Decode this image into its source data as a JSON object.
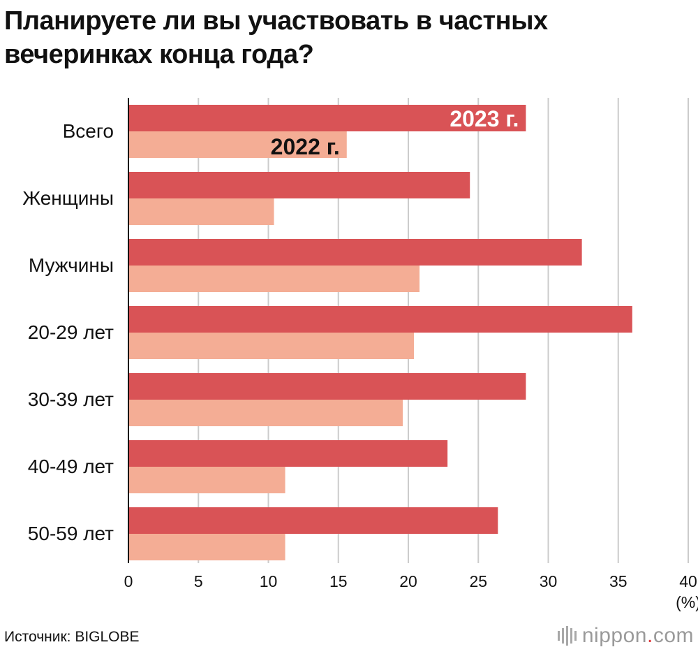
{
  "title": "Планируете ли вы участвовать в частных вечеринках конца года?",
  "source": "Источник: BIGLOBE",
  "logo": {
    "name": "nippon",
    "dot": ".",
    "tld": "com"
  },
  "colors": {
    "y2023": "#d95356",
    "y2022": "#f4ad95",
    "grid": "#cccccc",
    "axis": "#111111"
  },
  "chart_data": {
    "type": "bar",
    "orientation": "horizontal",
    "categories": [
      "Всего",
      "Женщины",
      "Мужчины",
      "20-29 лет",
      "30-39 лет",
      "40-49 лет",
      "50-59 лет"
    ],
    "series": [
      {
        "name": "2023 г.",
        "values": [
          28.4,
          24.4,
          32.4,
          36.0,
          28.4,
          22.8,
          26.4
        ]
      },
      {
        "name": "2022 г.",
        "values": [
          15.6,
          10.4,
          20.8,
          20.4,
          19.6,
          11.2,
          11.2
        ]
      }
    ],
    "xlim": [
      0,
      40
    ],
    "xticks": [
      0,
      5,
      10,
      15,
      20,
      25,
      30,
      35,
      40
    ],
    "xunit": "(%)",
    "grid": true
  }
}
